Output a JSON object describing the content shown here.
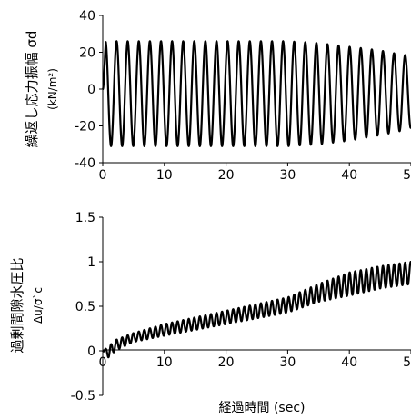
{
  "chart_data": [
    {
      "type": "line",
      "title": "",
      "ylabel": "繰返し応力振幅 σd",
      "ylabel_sub": "(kN/m²)",
      "xlabel": "",
      "xlim": [
        0,
        50
      ],
      "ylim": [
        -40,
        40
      ],
      "xticks": [
        "0",
        "10",
        "20",
        "30",
        "40",
        "50"
      ],
      "yticks": [
        "-40",
        "-20",
        "0",
        "20",
        "40"
      ],
      "grid": false,
      "line_color": "#000000",
      "series": [
        {
          "cycles": 28,
          "period_sec": 1.8,
          "x": [
            0,
            0.5,
            10,
            20,
            30,
            35,
            40,
            45,
            48,
            50
          ],
          "peak_max": [
            0,
            26,
            26,
            26,
            26,
            25,
            23,
            21,
            19,
            18
          ],
          "peak_min": [
            0,
            -31,
            -31,
            -31,
            -31,
            -30,
            -28,
            -25,
            -23,
            -21
          ]
        }
      ]
    },
    {
      "type": "line",
      "title": "",
      "ylabel": "過剰間隙水圧比",
      "ylabel_sub": "Δu/σ`c",
      "xlabel": "経過時間 (sec)",
      "xlim": [
        0,
        50
      ],
      "ylim": [
        -0.5,
        1.5
      ],
      "xticks": [
        "0",
        "10",
        "20",
        "30",
        "40",
        "50"
      ],
      "yticks": [
        "-0.5",
        "0",
        "0.5",
        "1",
        "1.5"
      ],
      "grid": false,
      "line_color": "#000000",
      "series": [
        {
          "cycles": 28,
          "period_sec": 1.8,
          "x": [
            0,
            1,
            2,
            5,
            10,
            20,
            30,
            35,
            40,
            45,
            50
          ],
          "upper": [
            0,
            0.05,
            0.12,
            0.2,
            0.3,
            0.45,
            0.6,
            0.75,
            0.88,
            0.95,
            1.0
          ],
          "lower": [
            0,
            -0.08,
            0.0,
            0.1,
            0.17,
            0.3,
            0.43,
            0.55,
            0.62,
            0.7,
            0.75
          ]
        }
      ]
    }
  ]
}
